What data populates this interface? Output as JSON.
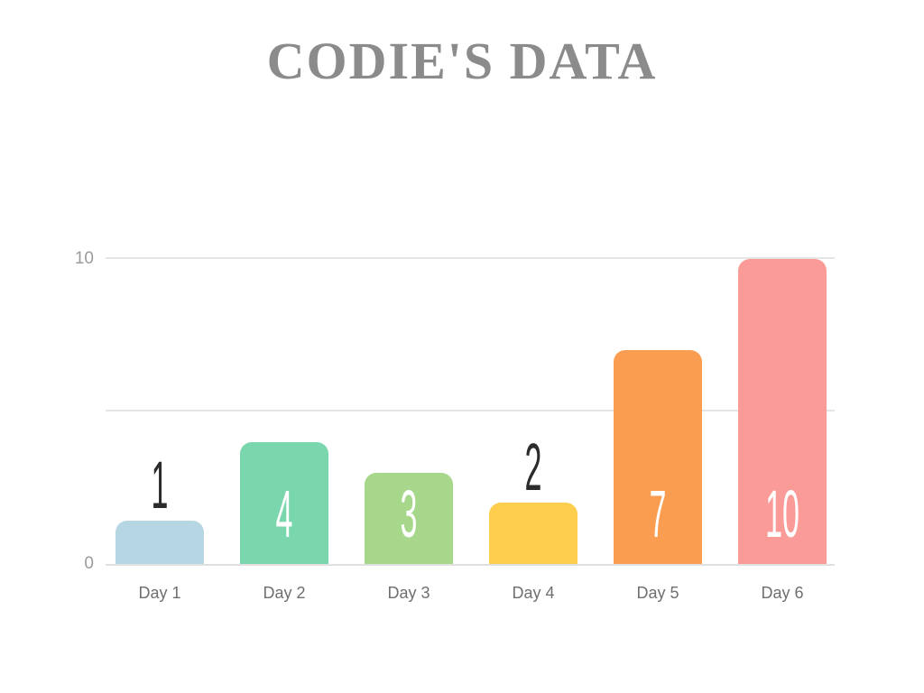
{
  "title": {
    "text": "CODIE'S DATA",
    "color": "#8b8b8b"
  },
  "chart_data": {
    "type": "bar",
    "title": "CODIE'S DATA",
    "categories": [
      "Day 1",
      "Day 2",
      "Day 3",
      "Day 4",
      "Day 5",
      "Day 6"
    ],
    "values": [
      1,
      4,
      3,
      2,
      7,
      10
    ],
    "bar_colors": [
      "#b5d6e2",
      "#79d6ad",
      "#a6d78a",
      "#fdce4b",
      "#fa9d50",
      "#fa9b98"
    ],
    "value_labels": [
      "1",
      "4",
      "3",
      "2",
      "7",
      "10"
    ],
    "value_label_inside_color": "#ffffff",
    "value_label_outside_color": "#2b2b2b",
    "xlabel": "",
    "ylabel": "",
    "ylim": [
      0,
      10
    ],
    "ytick_labels": {
      "max": "10",
      "min": "0"
    },
    "gridlines_y": [
      0,
      5,
      10
    ],
    "grid": "on",
    "legend": "none"
  },
  "axis_style": {
    "grid_color": "#e5e5e5",
    "baseline_color": "#e0e0e0",
    "ytick_color": "#9b9b9b",
    "category_label_color": "#6f6f6f"
  }
}
